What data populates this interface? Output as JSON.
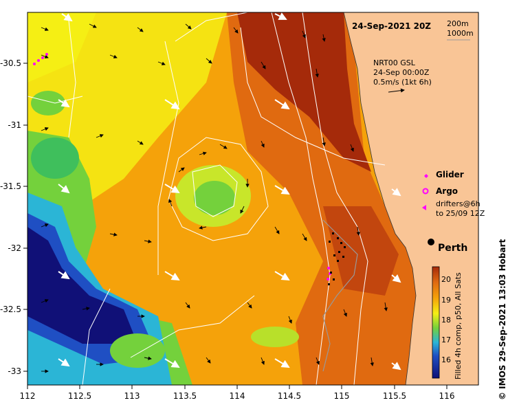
{
  "map": {
    "title_date": "24-Sep-2021 20Z",
    "depth_contours": [
      "200m",
      "1000m"
    ],
    "currents_title": "NRT00 GSL",
    "currents_date": "24-Sep 00:00Z",
    "currents_scale": "0.5m/s (1kt 6h)",
    "legend": {
      "glider": "Glider",
      "argo": "Argo",
      "drifters_line1": "drifters@6h",
      "drifters_line2": "to 25/09 12Z"
    },
    "place_label": "Perth",
    "colorbar_title": "Filled 4h comp, p50, All Sats",
    "credit": "© IMOS 29-Sep-2021 13:03 Hobart",
    "x_ticks": [
      "112",
      "112.5",
      "113",
      "113.5",
      "114",
      "114.5",
      "115",
      "115.5",
      "116"
    ],
    "y_ticks": [
      "-30.5",
      "-31",
      "-31.5",
      "-32",
      "-32.5",
      "-33"
    ],
    "colorbar_ticks": [
      "20",
      "19",
      "18",
      "17",
      "16"
    ],
    "colors": {
      "land": "#f9c596",
      "warm": "#a52a0a",
      "mid_warm": "#e06a10",
      "orange": "#f5a20a",
      "yellow": "#f5ef14",
      "green": "#74d13c",
      "cyan": "#2bb5d6",
      "blue": "#1f4fc3",
      "navy": "#101077",
      "glider_marker": "#ff00ff"
    }
  }
}
